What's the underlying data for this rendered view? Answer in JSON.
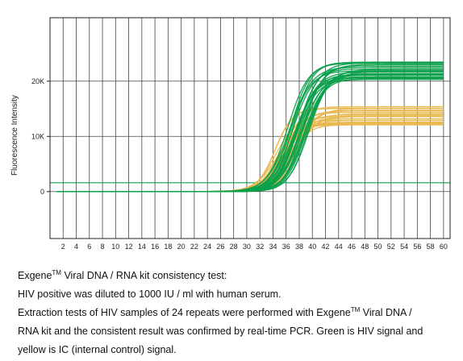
{
  "chart_data": {
    "type": "line",
    "ylabel": "Fluorescence Intensity",
    "xlabel": "",
    "xlim": [
      0,
      61
    ],
    "ylim": [
      -8500,
      31500
    ],
    "x_ticks": [
      "2",
      "4",
      "6",
      "8",
      "10",
      "12",
      "14",
      "16",
      "18",
      "20",
      "22",
      "24",
      "26",
      "28",
      "30",
      "32",
      "34",
      "36",
      "38",
      "40",
      "42",
      "44",
      "46",
      "48",
      "50",
      "52",
      "54",
      "56",
      "58",
      "60"
    ],
    "y_ticks": [
      {
        "value": 0,
        "label": "0"
      },
      {
        "value": 10000,
        "label": "10K"
      },
      {
        "value": 20000,
        "label": "20K"
      }
    ],
    "threshold": 1600,
    "grid": true,
    "series": [
      {
        "color": "#0aa04a",
        "replicates": 24,
        "ct_range": [
          33.2,
          36.2
        ],
        "baseline": 0,
        "plateau_range": [
          20000,
          23500
        ]
      },
      {
        "color": "#e8b84c",
        "replicates": 24,
        "ct_range": [
          31.0,
          34.4
        ],
        "baseline": 0,
        "plateau_range": [
          11800,
          15400
        ]
      }
    ]
  },
  "caption": {
    "line1_pre": "Exgene",
    "line1_tm": "TM",
    "line1_post": " Viral DNA / RNA kit consistency test:",
    "line2": "HIV positive was diluted to 1000 IU / ml with human serum.",
    "line3_pre": "Extraction tests of HIV samples of 24 repeats were performed with Exgene",
    "line3_tm": "TM",
    "line3_post": " Viral DNA /",
    "line4": "RNA kit and the consistent result was confirmed by real-time PCR. Green is HIV signal and",
    "line5": "yellow is IC (internal control) signal."
  }
}
